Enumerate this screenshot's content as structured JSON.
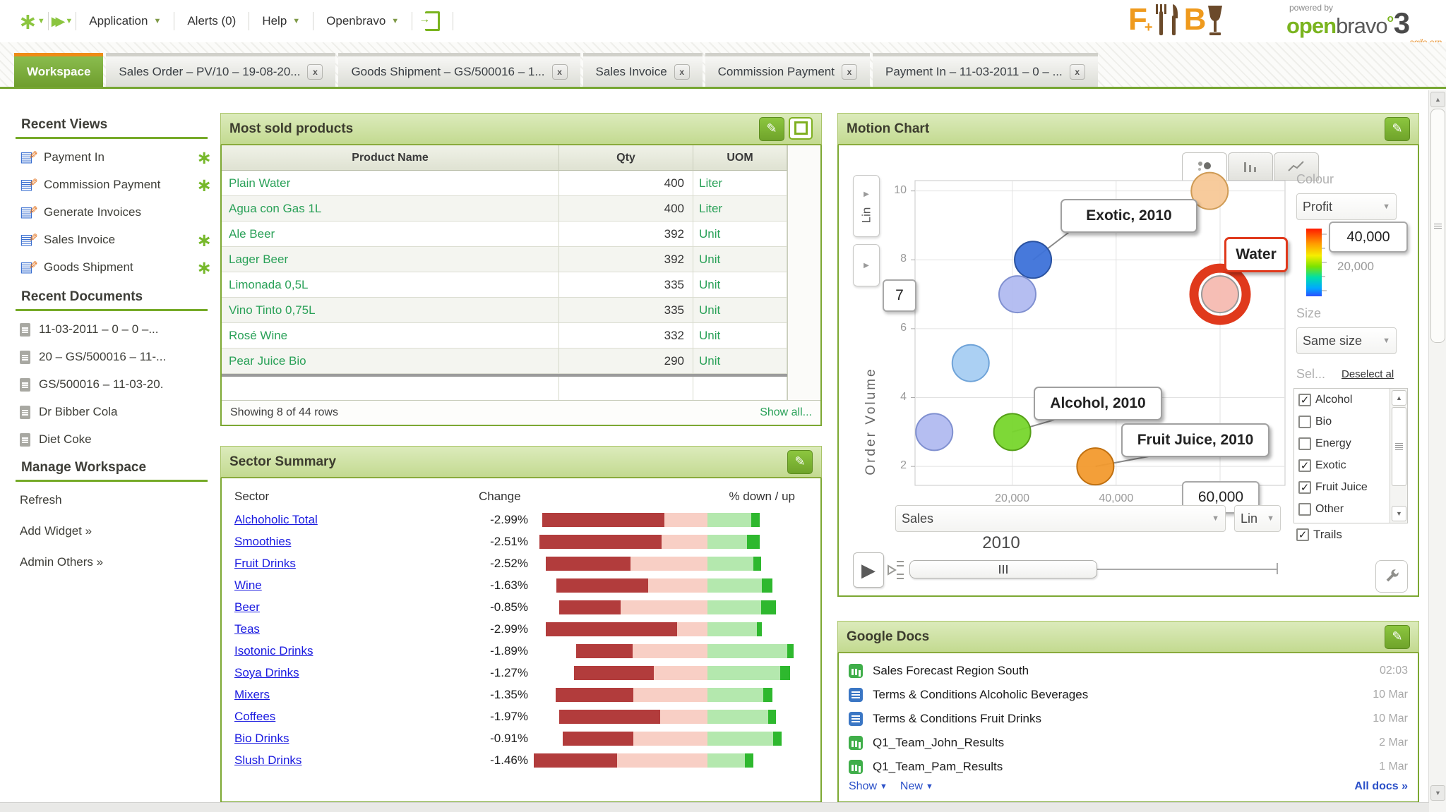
{
  "header": {
    "menu": {
      "application": "Application",
      "alerts": "Alerts (0)",
      "help": "Help",
      "openbravo": "Openbravo"
    },
    "brand": {
      "fb_f": "F",
      "fb_plus": "+",
      "fb_b": "B",
      "powered_by": "powered by",
      "open": "open",
      "bravo": "bravo",
      "o_mark": "o",
      "three": "3",
      "tagline": "agile erp"
    }
  },
  "tabs": [
    {
      "label": "Workspace",
      "active": true,
      "closable": false
    },
    {
      "label": "Sales Order – PV/10 – 19-08-20...",
      "active": false,
      "closable": true
    },
    {
      "label": "Goods Shipment – GS/500016 – 1...",
      "active": false,
      "closable": true
    },
    {
      "label": "Sales Invoice",
      "active": false,
      "closable": true
    },
    {
      "label": "Commission Payment",
      "active": false,
      "closable": true
    },
    {
      "label": "Payment In – 11-03-2011 – 0 – ...",
      "active": false,
      "closable": true
    }
  ],
  "sidebar": {
    "recent_views": {
      "title": "Recent Views",
      "items": [
        {
          "label": "Payment In",
          "starred": true
        },
        {
          "label": "Commission Payment",
          "starred": true
        },
        {
          "label": "Generate Invoices",
          "starred": false
        },
        {
          "label": "Sales Invoice",
          "starred": true
        },
        {
          "label": "Goods Shipment",
          "starred": true
        }
      ]
    },
    "recent_documents": {
      "title": "Recent Documents",
      "items": [
        "11-03-2011 – 0 – 0 –...",
        "20 – GS/500016 – 11-...",
        "GS/500016 – 11-03-20.",
        "Dr Bibber Cola",
        "Diet Coke"
      ]
    },
    "manage_workspace": {
      "title": "Manage Workspace",
      "items": [
        "Refresh",
        "Add Widget »",
        "Admin Others »"
      ]
    }
  },
  "most_sold": {
    "title": "Most sold products",
    "columns": [
      "Product Name",
      "Qty",
      "UOM"
    ],
    "rows": [
      {
        "name": "Plain Water",
        "qty": "400",
        "uom": "Liter"
      },
      {
        "name": "Agua con Gas 1L",
        "qty": "400",
        "uom": "Liter"
      },
      {
        "name": "Ale Beer",
        "qty": "392",
        "uom": "Unit"
      },
      {
        "name": "Lager Beer",
        "qty": "392",
        "uom": "Unit"
      },
      {
        "name": "Limonada 0,5L",
        "qty": "335",
        "uom": "Unit"
      },
      {
        "name": "Vino Tinto 0,75L",
        "qty": "335",
        "uom": "Unit"
      },
      {
        "name": "Rosé Wine",
        "qty": "332",
        "uom": "Unit"
      },
      {
        "name": "Pear Juice Bio",
        "qty": "290",
        "uom": "Unit"
      }
    ],
    "footer": {
      "showing": "Showing 8 of 44 rows",
      "show_all": "Show all..."
    }
  },
  "sector_summary": {
    "title": "Sector Summary",
    "headers": {
      "sector": "Sector",
      "change": "Change",
      "updown": "% down / up"
    },
    "chart_data": {
      "type": "bar",
      "orientation": "horizontal",
      "note": "segment positions are % of bar track width; pink ends at fixed divider",
      "divider_pct": 67.2,
      "colors": {
        "down_dark": "#b23c3c",
        "down_light": "#f8cfc5",
        "up_light": "#b4e8ae",
        "up_dark": "#2eb82e"
      },
      "rows": [
        {
          "sector": "Alchoholic Total",
          "change": "-2.99%",
          "red": [
            4.8,
            50.9
          ],
          "green_end": 83.7,
          "tip_end": 86.9
        },
        {
          "sector": "Smoothies",
          "change": "-2.51%",
          "red": [
            3.7,
            49.9
          ],
          "green_end": 82.1,
          "tip_end": 86.9
        },
        {
          "sector": "Fruit Drinks",
          "change": "-2.52%",
          "red": [
            6.1,
            38.1
          ],
          "green_end": 84.5,
          "tip_end": 87.5
        },
        {
          "sector": "Wine",
          "change": "-1.63%",
          "red": [
            10.1,
            44.8
          ],
          "green_end": 87.7,
          "tip_end": 91.7
        },
        {
          "sector": "Beer",
          "change": "-0.85%",
          "red": [
            11.2,
            34.4
          ],
          "green_end": 87.5,
          "tip_end": 93.1
        },
        {
          "sector": "Teas",
          "change": "-2.99%",
          "red": [
            6.1,
            55.7
          ],
          "green_end": 85.9,
          "tip_end": 87.7
        },
        {
          "sector": "Isotonic Drinks",
          "change": "-1.89%",
          "red": [
            17.6,
            38.9
          ],
          "green_end": 97.3,
          "tip_end": 99.7
        },
        {
          "sector": "Soya Drinks",
          "change": "-1.27%",
          "red": [
            16.8,
            46.9
          ],
          "green_end": 94.7,
          "tip_end": 98.4
        },
        {
          "sector": "Mixers",
          "change": "-1.35%",
          "red": [
            9.9,
            39.2
          ],
          "green_end": 88.3,
          "tip_end": 91.7
        },
        {
          "sector": "Coffees",
          "change": "-1.97%",
          "red": [
            11.2,
            49.3
          ],
          "green_end": 90.1,
          "tip_end": 93.1
        },
        {
          "sector": "Bio Drinks",
          "change": "-0.91%",
          "red": [
            12.5,
            39.2
          ],
          "green_end": 92.0,
          "tip_end": 95.2
        },
        {
          "sector": "Slush Drinks",
          "change": "-1.46%",
          "red": [
            1.6,
            33.1
          ],
          "green_end": 81.3,
          "tip_end": 84.5
        }
      ]
    }
  },
  "motion_chart": {
    "title": "Motion Chart",
    "chart_data": {
      "type": "scatter",
      "xlabel": "Sales",
      "ylabel": "Order Volume",
      "x_ticks": [
        "20,000",
        "40,000"
      ],
      "x_hover_value": "60,000",
      "y_ticks": [
        "10",
        "8",
        "6",
        "4",
        "2"
      ],
      "y_hover_value": "7",
      "xlim": [
        1300,
        72500
      ],
      "ylim": [
        1.45,
        10.3
      ],
      "grid": true,
      "series": [
        {
          "name": "peach-bubble",
          "x": 58000,
          "y": 10,
          "color": "#f7c897",
          "stroke": "#cf9b55"
        },
        {
          "name": "Exotic",
          "x": 24000,
          "y": 8,
          "color": "#3d72d9",
          "stroke": "#2a52a0",
          "label": "Exotic, 2010"
        },
        {
          "name": "periwinkle-bubble-1",
          "x": 21000,
          "y": 7,
          "color": "#b1bbf0",
          "stroke": "#8090d0"
        },
        {
          "name": "lightblue-bubble",
          "x": 12000,
          "y": 5,
          "color": "#a6cdf2",
          "stroke": "#6fa3d8"
        },
        {
          "name": "periwinkle-bubble-2",
          "x": 5000,
          "y": 3,
          "color": "#b1bbf0",
          "stroke": "#8090d0"
        },
        {
          "name": "Alcohol",
          "x": 20000,
          "y": 3,
          "color": "#77d62c",
          "stroke": "#55a018",
          "label": "Alcohol, 2010"
        },
        {
          "name": "Fruit Juice",
          "x": 36000,
          "y": 2,
          "color": "#f29a2e",
          "stroke": "#c07010",
          "label": "Fruit Juice, 2010"
        },
        {
          "name": "Water",
          "x": 60000,
          "y": 7,
          "color": "#f6bab1",
          "stroke": "#9a9a9a",
          "selected": true,
          "label": "Water"
        }
      ]
    },
    "controls": {
      "y_scale": "Lin",
      "x_scale": "Lin",
      "x_var": "Sales",
      "colour_label": "Colour",
      "colour_var": "Profit",
      "colour_max": "40,000",
      "colour_mid": "20,000",
      "size_label": "Size",
      "size_var": "Same size",
      "select_label": "Sel...",
      "deselect": "Deselect al",
      "trails": "Trails",
      "year": "2010",
      "categories": [
        {
          "label": "Alcohol",
          "checked": true
        },
        {
          "label": "Bio",
          "checked": false
        },
        {
          "label": "Energy",
          "checked": false
        },
        {
          "label": "Exotic",
          "checked": true
        },
        {
          "label": "Fruit Juice",
          "checked": true
        },
        {
          "label": "Other",
          "checked": false
        }
      ]
    }
  },
  "google_docs": {
    "title": "Google Docs",
    "rows": [
      {
        "icon": "spreadsheet",
        "name": "Sales Forecast Region South",
        "date": "02:03"
      },
      {
        "icon": "document",
        "name": "Terms & Conditions Alcoholic Beverages",
        "date": "10 Mar"
      },
      {
        "icon": "document",
        "name": "Terms & Conditions Fruit Drinks",
        "date": "10 Mar"
      },
      {
        "icon": "spreadsheet",
        "name": "Q1_Team_John_Results",
        "date": "2 Mar"
      },
      {
        "icon": "spreadsheet",
        "name": "Q1_Team_Pam_Results",
        "date": "1 Mar"
      }
    ],
    "footer": {
      "show": "Show",
      "new_label": "New",
      "all_docs": "All docs »"
    }
  }
}
